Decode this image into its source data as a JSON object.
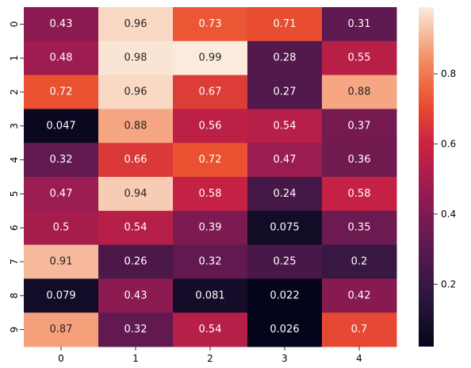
{
  "chart_data": {
    "type": "heatmap",
    "title": "",
    "xlabel": "",
    "ylabel": "",
    "x_categories": [
      "0",
      "1",
      "2",
      "3",
      "4"
    ],
    "y_categories": [
      "0",
      "1",
      "2",
      "3",
      "4",
      "5",
      "6",
      "7",
      "8",
      "9"
    ],
    "values": [
      [
        0.43,
        0.96,
        0.73,
        0.71,
        0.31
      ],
      [
        0.48,
        0.98,
        0.99,
        0.28,
        0.55
      ],
      [
        0.72,
        0.96,
        0.67,
        0.27,
        0.88
      ],
      [
        0.047,
        0.88,
        0.56,
        0.54,
        0.37
      ],
      [
        0.32,
        0.66,
        0.72,
        0.47,
        0.36
      ],
      [
        0.47,
        0.94,
        0.58,
        0.24,
        0.58
      ],
      [
        0.5,
        0.54,
        0.39,
        0.075,
        0.35
      ],
      [
        0.91,
        0.26,
        0.32,
        0.25,
        0.2
      ],
      [
        0.079,
        0.43,
        0.081,
        0.022,
        0.42
      ],
      [
        0.87,
        0.32,
        0.54,
        0.026,
        0.7
      ]
    ],
    "annotated": true,
    "colormap": "rocket",
    "colorbar": {
      "range": [
        0.022,
        0.99
      ],
      "ticks": [
        0.2,
        0.4,
        0.6,
        0.8
      ],
      "tick_labels": [
        "0.2",
        "0.4",
        "0.6",
        "0.8"
      ]
    },
    "grid": false,
    "legend": "colorbar right"
  }
}
